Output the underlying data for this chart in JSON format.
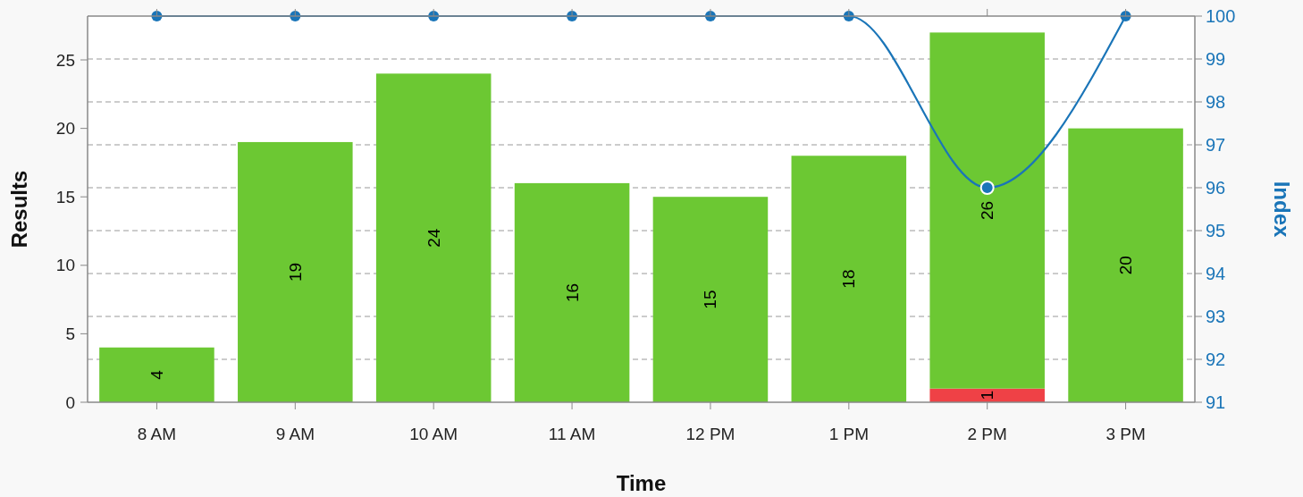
{
  "chart_data": {
    "type": "bar",
    "xlabel": "Time",
    "ylabel": "Results",
    "y2label": "Index",
    "categories": [
      "8 AM",
      "9 AM",
      "10 AM",
      "11 AM",
      "12 PM",
      "1 PM",
      "2 PM",
      "3 PM"
    ],
    "stacked": true,
    "grid": true,
    "marker": "circle",
    "ylim": [
      0,
      28.2
    ],
    "yticks": [
      0,
      5,
      10,
      15,
      20,
      25
    ],
    "y2lim": [
      91,
      100
    ],
    "y2ticks": [
      91,
      92,
      93,
      94,
      95,
      96,
      97,
      98,
      99,
      100
    ],
    "series": [
      {
        "color": "#ef4146",
        "values": [
          null,
          null,
          null,
          null,
          null,
          null,
          1,
          null
        ],
        "value_labels": [
          null,
          null,
          null,
          null,
          null,
          null,
          "1",
          null
        ]
      },
      {
        "color": "#6cc833",
        "values": [
          4,
          19,
          24,
          16,
          15,
          18,
          26,
          20
        ],
        "value_labels": [
          "4",
          "19",
          "24",
          "16",
          "15",
          "18",
          "26",
          "20"
        ]
      },
      {
        "type": "line",
        "axis": "y2",
        "color": "#1a75b8",
        "values": [
          100,
          100,
          100,
          100,
          100,
          100,
          96,
          100
        ]
      }
    ]
  }
}
